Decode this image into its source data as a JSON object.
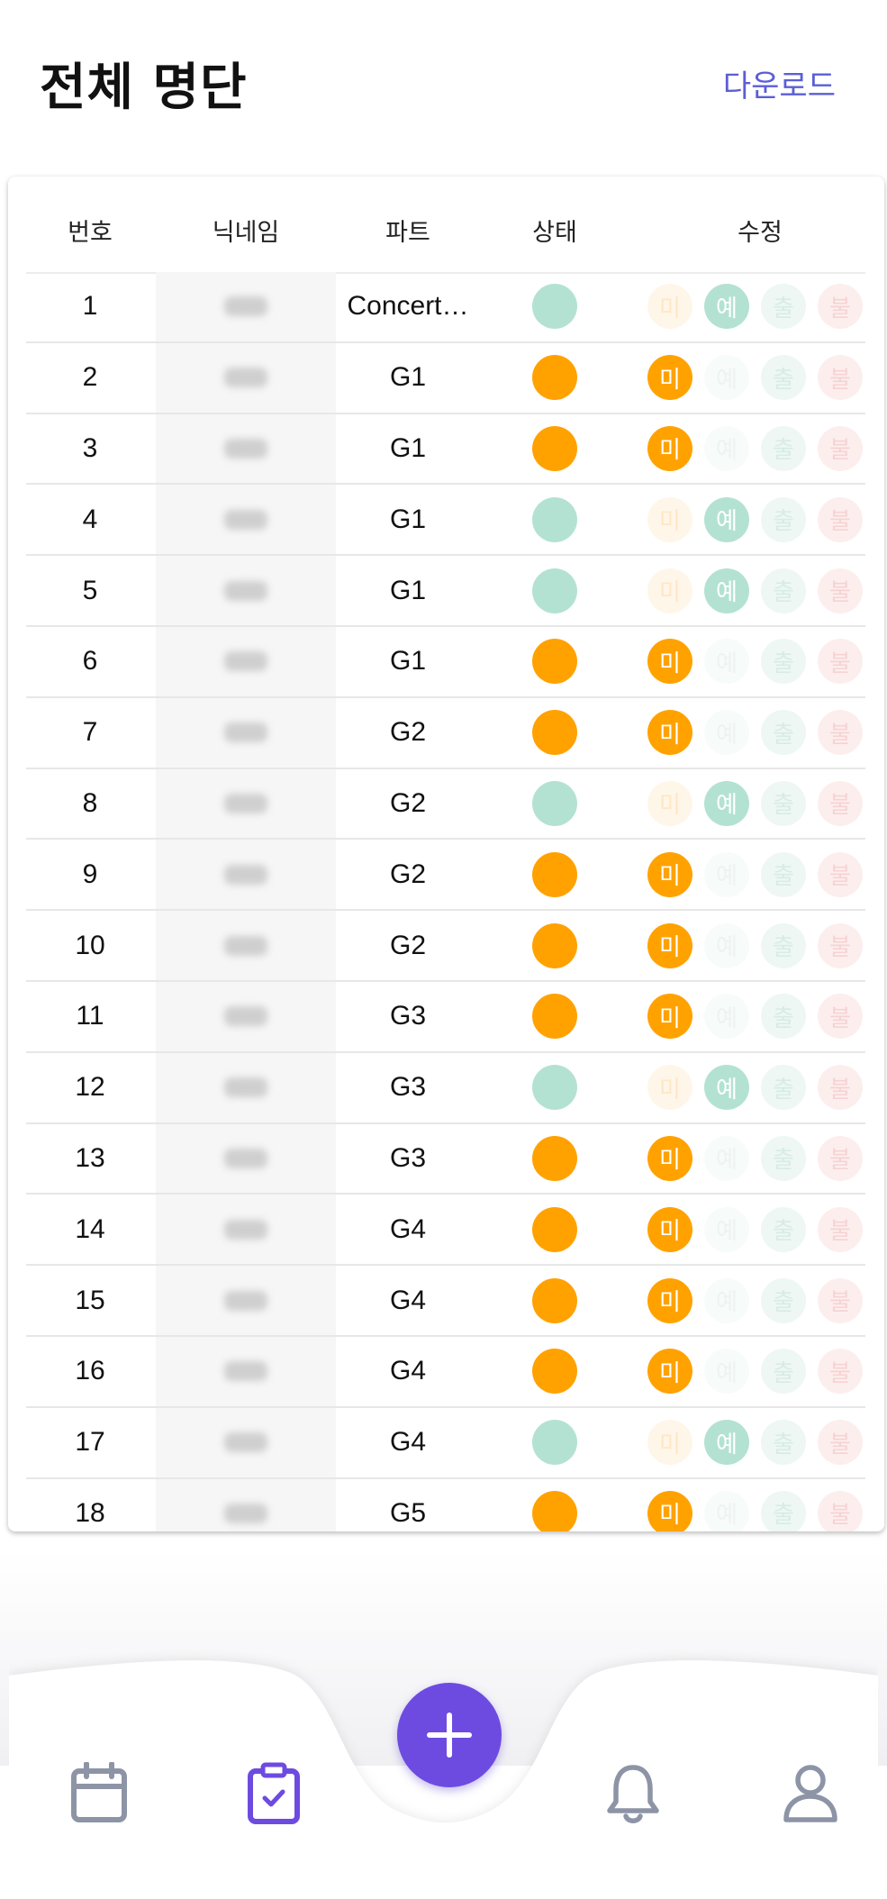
{
  "header": {
    "title": "전체 명단",
    "download_label": "다운로드"
  },
  "table": {
    "columns": [
      "번호",
      "닉네임",
      "파트",
      "상태",
      "수정"
    ],
    "chip_labels": [
      "미",
      "예",
      "출",
      "불"
    ],
    "status_colors": {
      "미": "#ffa200",
      "예": "#b4e2d2"
    },
    "rows": [
      {
        "num": "1",
        "part": "Concert…",
        "status": "예"
      },
      {
        "num": "2",
        "part": "G1",
        "status": "미"
      },
      {
        "num": "3",
        "part": "G1",
        "status": "미"
      },
      {
        "num": "4",
        "part": "G1",
        "status": "예"
      },
      {
        "num": "5",
        "part": "G1",
        "status": "예"
      },
      {
        "num": "6",
        "part": "G1",
        "status": "미"
      },
      {
        "num": "7",
        "part": "G2",
        "status": "미"
      },
      {
        "num": "8",
        "part": "G2",
        "status": "예"
      },
      {
        "num": "9",
        "part": "G2",
        "status": "미"
      },
      {
        "num": "10",
        "part": "G2",
        "status": "미"
      },
      {
        "num": "11",
        "part": "G3",
        "status": "미"
      },
      {
        "num": "12",
        "part": "G3",
        "status": "예"
      },
      {
        "num": "13",
        "part": "G3",
        "status": "미"
      },
      {
        "num": "14",
        "part": "G4",
        "status": "미"
      },
      {
        "num": "15",
        "part": "G4",
        "status": "미"
      },
      {
        "num": "16",
        "part": "G4",
        "status": "미"
      },
      {
        "num": "17",
        "part": "G4",
        "status": "예"
      },
      {
        "num": "18",
        "part": "G5",
        "status": "미"
      }
    ]
  },
  "nav": {
    "items": [
      {
        "icon": "calendar-icon",
        "active": false
      },
      {
        "icon": "clipboard-check-icon",
        "active": true
      },
      {
        "icon": "bell-icon",
        "active": false
      },
      {
        "icon": "user-icon",
        "active": false
      }
    ],
    "fab_icon": "plus-icon",
    "accent": "#6d4be0",
    "inactive_color": "#8d94a6"
  }
}
